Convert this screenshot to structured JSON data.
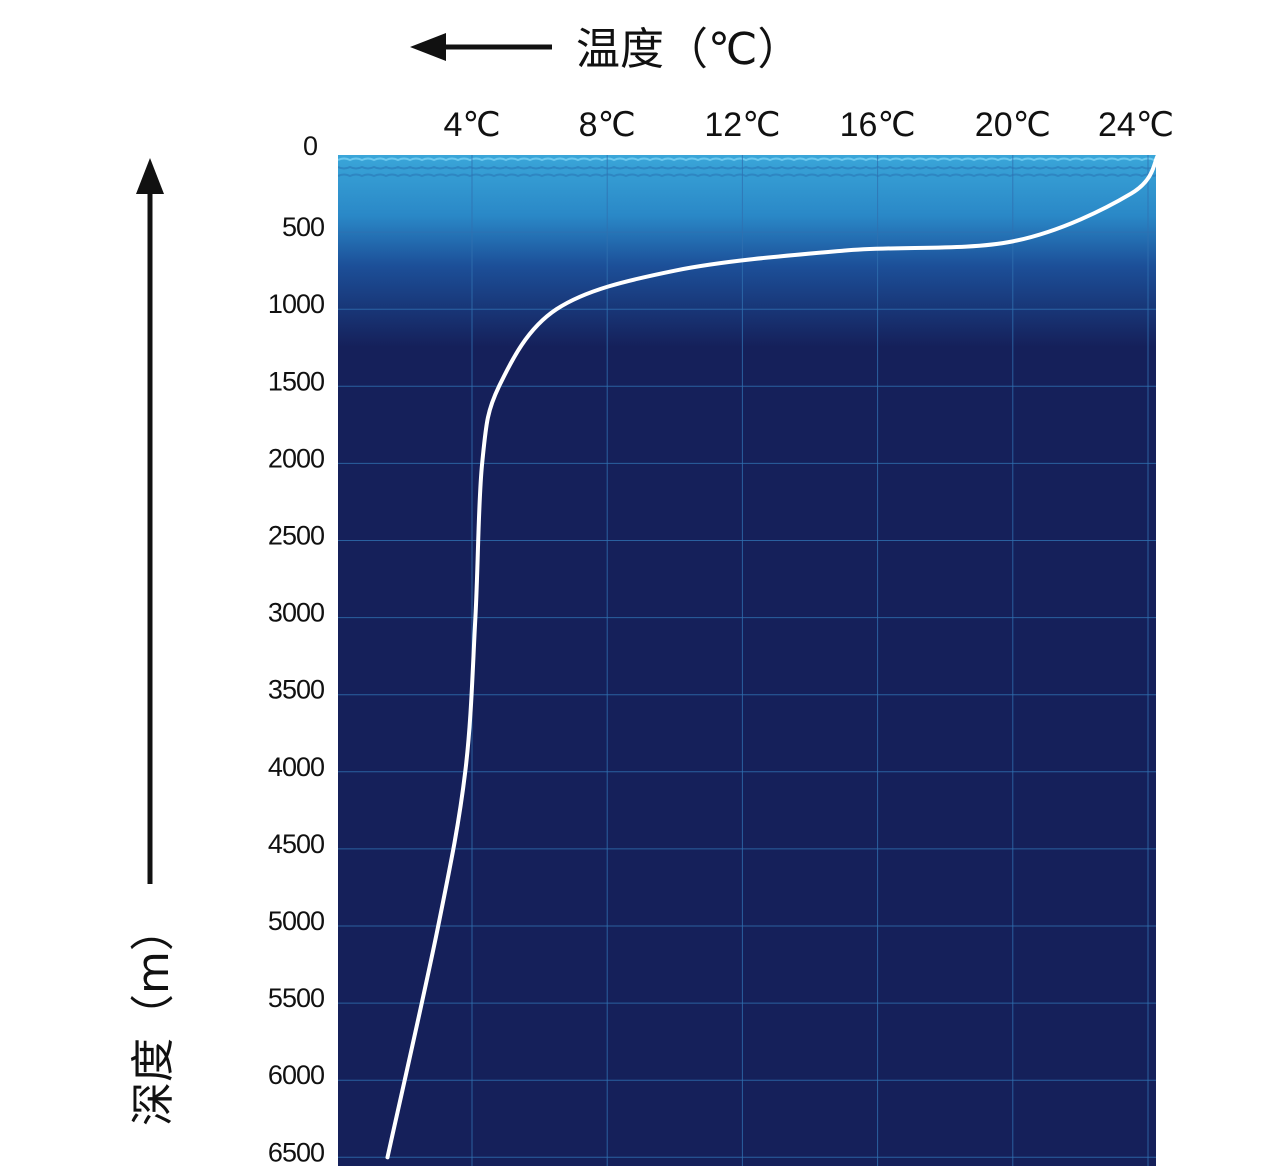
{
  "chart_data": {
    "type": "line",
    "x_axis": {
      "label": "温度（℃）",
      "position": "top",
      "direction": "pointing left",
      "ticks": [
        4,
        8,
        12,
        16,
        20,
        24
      ],
      "tick_labels": [
        "4℃",
        "8℃",
        "12℃",
        "16℃",
        "20℃",
        "24℃"
      ],
      "range": [
        0,
        24.3
      ]
    },
    "y_axis": {
      "label": "深度（m）",
      "position": "left",
      "direction": "pointing up",
      "ticks": [
        0,
        500,
        1000,
        1500,
        2000,
        2500,
        3000,
        3500,
        4000,
        4500,
        5000,
        5500,
        6000,
        6500
      ],
      "tick_labels": [
        "0",
        "500",
        "1000",
        "1500",
        "2000",
        "2500",
        "3000",
        "3500",
        "4000",
        "4500",
        "5000",
        "5500",
        "6000",
        "6500"
      ],
      "range": [
        0,
        6500
      ]
    },
    "grid": true,
    "colors": {
      "surface": "#3aa6d9",
      "deep": "#15205a",
      "grid": "#2f70b0",
      "curve": "#ffffff"
    },
    "series": [
      {
        "points": [
          {
            "temp": 24.3,
            "depth": 0
          },
          {
            "temp": 23.5,
            "depth": 250
          },
          {
            "temp": 20.0,
            "depth": 560
          },
          {
            "temp": 15.0,
            "depth": 620
          },
          {
            "temp": 10.0,
            "depth": 750
          },
          {
            "temp": 6.5,
            "depth": 1000
          },
          {
            "temp": 4.8,
            "depth": 1500
          },
          {
            "temp": 4.3,
            "depth": 2000
          },
          {
            "temp": 4.1,
            "depth": 3000
          },
          {
            "temp": 3.8,
            "depth": 4000
          },
          {
            "temp": 3.0,
            "depth": 5000
          },
          {
            "temp": 1.5,
            "depth": 6500
          }
        ]
      }
    ]
  }
}
